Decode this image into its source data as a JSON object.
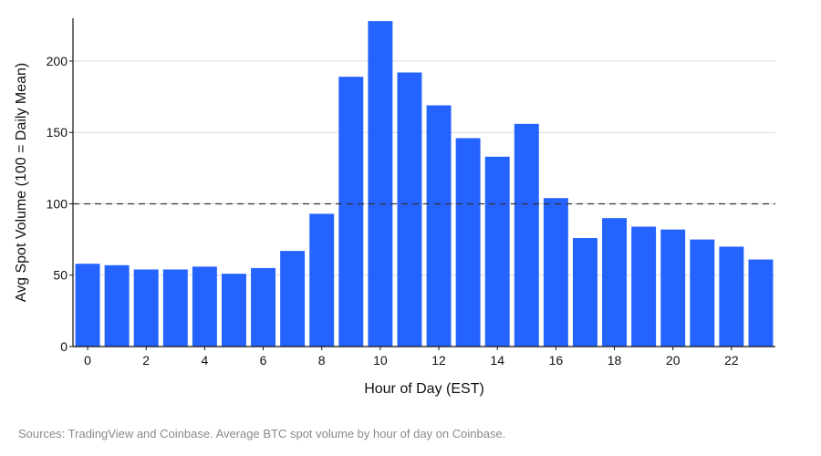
{
  "chart_data": {
    "type": "bar",
    "title": "",
    "xlabel": "Hour of Day (EST)",
    "ylabel": "Avg Spot Volume (100 = Daily Mean)",
    "categories": [
      0,
      1,
      2,
      3,
      4,
      5,
      6,
      7,
      8,
      9,
      10,
      11,
      12,
      13,
      14,
      15,
      16,
      17,
      18,
      19,
      20,
      21,
      22,
      23
    ],
    "values": [
      58,
      57,
      54,
      54,
      56,
      51,
      55,
      67,
      93,
      189,
      228,
      192,
      169,
      146,
      133,
      156,
      104,
      76,
      90,
      84,
      82,
      75,
      70,
      61
    ],
    "x_tick_labels": [
      "0",
      "2",
      "4",
      "6",
      "8",
      "10",
      "12",
      "14",
      "16",
      "18",
      "20",
      "22"
    ],
    "x_tick_values": [
      0,
      2,
      4,
      6,
      8,
      10,
      12,
      14,
      16,
      18,
      20,
      22
    ],
    "y_tick_labels": [
      "0",
      "50",
      "100",
      "150",
      "200"
    ],
    "y_tick_values": [
      0,
      50,
      100,
      150,
      200
    ],
    "ylim": [
      0,
      230
    ],
    "reference_line": 100,
    "grid": "horizontal",
    "bar_color": "#2563ff",
    "reference_line_color": "#333333"
  },
  "source_text": "Sources: TradingView and Coinbase. Average BTC spot volume by hour of day on Coinbase."
}
